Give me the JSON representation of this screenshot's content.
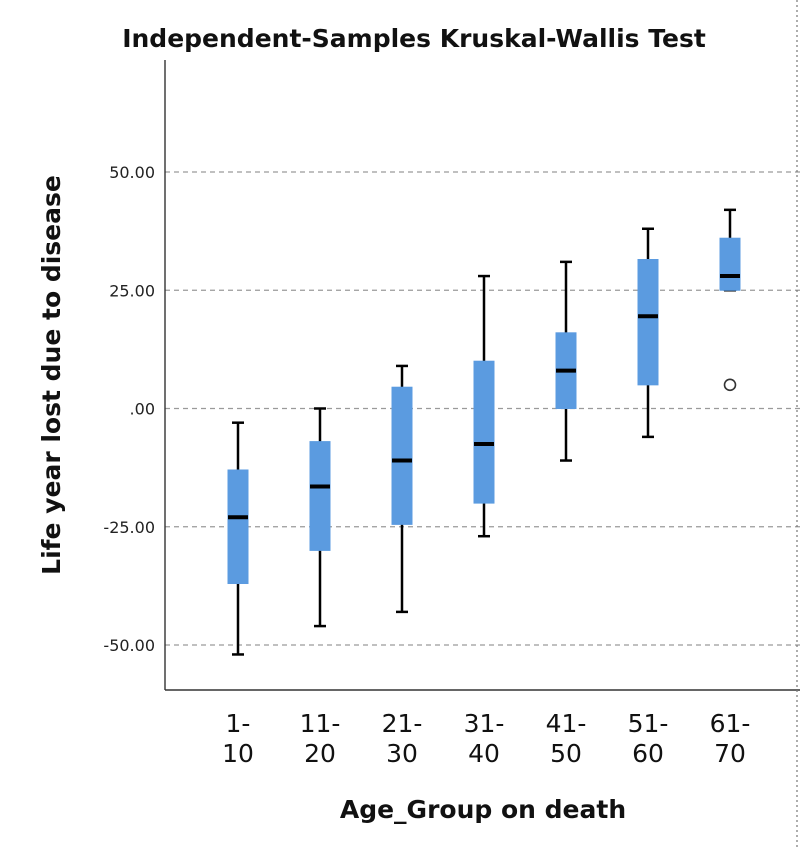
{
  "chart_data": {
    "type": "box",
    "title": "Independent-Samples Kruskal-Wallis Test",
    "xlabel": "Age_Group on death",
    "ylabel": "Life year lost due to disease",
    "ylim": [
      -60,
      75
    ],
    "yticks": [
      50,
      25,
      0,
      -25,
      -50
    ],
    "ytick_labels": [
      "50.00",
      "25.00",
      ".00",
      "-25.00",
      "-50.00"
    ],
    "grid": true,
    "box_color": "#5b9be0",
    "median_color": "#000000",
    "categories": [
      {
        "label": [
          "1-",
          "10"
        ],
        "min": -52,
        "q1": -37,
        "median": -23,
        "q3": -13,
        "max": -3,
        "outliers": []
      },
      {
        "label": [
          "11-",
          "20"
        ],
        "min": -46,
        "q1": -30,
        "median": -16.5,
        "q3": -7,
        "max": 0,
        "outliers": []
      },
      {
        "label": [
          "21-",
          "30"
        ],
        "min": -43,
        "q1": -24.5,
        "median": -11,
        "q3": 4.5,
        "max": 9,
        "outliers": []
      },
      {
        "label": [
          "31-",
          "40"
        ],
        "min": -27,
        "q1": -20,
        "median": -7.5,
        "q3": 10,
        "max": 28,
        "outliers": []
      },
      {
        "label": [
          "41-",
          "50"
        ],
        "min": -11,
        "q1": 0,
        "median": 8,
        "q3": 16,
        "max": 31,
        "outliers": []
      },
      {
        "label": [
          "51-",
          "60"
        ],
        "min": -6,
        "q1": 5,
        "median": 19.5,
        "q3": 31.5,
        "max": 38,
        "outliers": []
      },
      {
        "label": [
          "61-",
          "70"
        ],
        "min": 25,
        "q1": 25,
        "median": 28,
        "q3": 36,
        "max": 42,
        "outliers": [
          5
        ]
      }
    ]
  }
}
